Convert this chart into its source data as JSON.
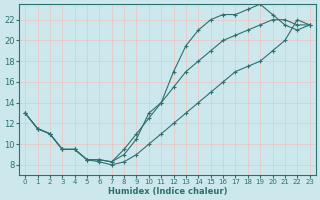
{
  "xlabel": "Humidex (Indice chaleur)",
  "bg_color": "#cce8ec",
  "grid_color": "#e8c8c8",
  "line_color": "#2e7070",
  "xlim": [
    -0.5,
    23.5
  ],
  "ylim": [
    7,
    23.5
  ],
  "xticks": [
    0,
    1,
    2,
    3,
    4,
    5,
    6,
    7,
    8,
    9,
    10,
    11,
    12,
    13,
    14,
    15,
    16,
    17,
    18,
    19,
    20,
    21,
    22,
    23
  ],
  "yticks": [
    8,
    10,
    12,
    14,
    16,
    18,
    20,
    22
  ],
  "line_nomarker_x": [
    0,
    1,
    2,
    3,
    4,
    5,
    6,
    7,
    8,
    9,
    10,
    11,
    12,
    13,
    14,
    15,
    16,
    17,
    18,
    19,
    20,
    21,
    22,
    23
  ],
  "line_nomarker_y": [
    13,
    11.5,
    11,
    9.5,
    9.5,
    8.5,
    8.5,
    8.3,
    9.5,
    11,
    12.5,
    14,
    15.5,
    17,
    18,
    19,
    20,
    20.5,
    21,
    21.5,
    22,
    22,
    21.5,
    21.5
  ],
  "line_steep_x": [
    0,
    1,
    2,
    3,
    4,
    5,
    6,
    7,
    8,
    9,
    10,
    11,
    12,
    13,
    14,
    15,
    16,
    17,
    18,
    19,
    20,
    21,
    22,
    23
  ],
  "line_steep_y": [
    13,
    11.5,
    11,
    9.5,
    9.5,
    8.5,
    8.5,
    8.3,
    9,
    10.5,
    13,
    14,
    17,
    19.5,
    21,
    22,
    22.5,
    22.5,
    23,
    23.5,
    22.5,
    21.5,
    21,
    21.5
  ],
  "line_flat_x": [
    0,
    1,
    2,
    3,
    4,
    5,
    6,
    7,
    8,
    9,
    10,
    11,
    12,
    13,
    14,
    15,
    16,
    17,
    18,
    19,
    20,
    21,
    22,
    23
  ],
  "line_flat_y": [
    13,
    11.5,
    11,
    9.5,
    9.5,
    8.5,
    8.3,
    8.0,
    8.3,
    9,
    10,
    11,
    12,
    13,
    14,
    15,
    16,
    17,
    17.5,
    18,
    19,
    20,
    22,
    21.5
  ]
}
